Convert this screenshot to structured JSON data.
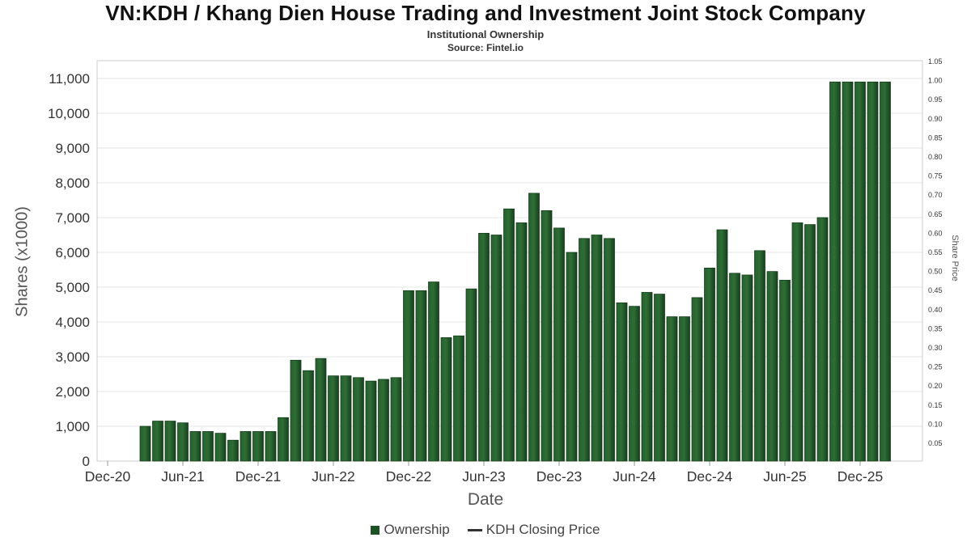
{
  "header": {
    "title": "VN:KDH / Khang Dien House Trading and Investment Joint Stock Company",
    "subtitle": "Institutional Ownership",
    "source": "Source: Fintel.io"
  },
  "chart_data": {
    "type": "bar",
    "title": "VN:KDH / Khang Dien House Trading and Investment Joint Stock Company",
    "subtitle": "Institutional Ownership",
    "source": "Source: Fintel.io",
    "xlabel": "Date",
    "ylabel_left": "Shares (x1000)",
    "ylabel_right": "Share Price",
    "grid": true,
    "legend_position": "bottom",
    "x_ticks": [
      "Dec-20",
      "Jun-21",
      "Dec-21",
      "Jun-22",
      "Dec-22",
      "Jun-23",
      "Dec-23",
      "Jun-24",
      "Dec-24",
      "Jun-25",
      "Dec-25"
    ],
    "y_axis_left": {
      "min": 0,
      "max": 11000,
      "step": 1000
    },
    "y_axis_right": {
      "min": 0.05,
      "max": 1.05,
      "step": 0.05
    },
    "categories": [
      "Mar-21",
      "Apr-21",
      "May-21",
      "Jun-21",
      "Jul-21",
      "Aug-21",
      "Sep-21",
      "Oct-21",
      "Nov-21",
      "Dec-21",
      "Jan-22",
      "Feb-22",
      "Mar-22",
      "Apr-22",
      "May-22",
      "Jun-22",
      "Jul-22",
      "Aug-22",
      "Sep-22",
      "Oct-22",
      "Nov-22",
      "Dec-22",
      "Jan-23",
      "Feb-23",
      "Mar-23",
      "Apr-23",
      "May-23",
      "Jun-23",
      "Jul-23",
      "Aug-23",
      "Sep-23",
      "Oct-23",
      "Nov-23",
      "Dec-23",
      "Jan-24",
      "Feb-24",
      "Mar-24",
      "Apr-24",
      "May-24",
      "Jun-24",
      "Jul-24",
      "Aug-24",
      "Sep-24",
      "Oct-24",
      "Nov-24",
      "Dec-24",
      "Jan-25",
      "Feb-25",
      "Mar-25",
      "Apr-25",
      "May-25",
      "Jun-25",
      "Jul-25",
      "Aug-25",
      "Sep-25",
      "Oct-25",
      "Nov-25",
      "Dec-25",
      "Jan-26",
      "Feb-26"
    ],
    "series": [
      {
        "name": "Ownership",
        "type": "bar",
        "color": "#1d5126",
        "values": [
          1000,
          1150,
          1150,
          1100,
          850,
          850,
          800,
          600,
          850,
          850,
          850,
          1250,
          2900,
          2600,
          2950,
          2450,
          2450,
          2400,
          2300,
          2350,
          2400,
          4900,
          4900,
          5150,
          3550,
          3600,
          4950,
          6550,
          6500,
          7250,
          6850,
          7700,
          7200,
          6700,
          6000,
          6400,
          6500,
          6400,
          4550,
          4450,
          4850,
          4800,
          4150,
          4150,
          4700,
          5550,
          6650,
          5400,
          5350,
          6050,
          5450,
          5200,
          6850,
          6800,
          7000,
          10900,
          10900,
          10900,
          10900,
          10900
        ]
      },
      {
        "name": "KDH Closing Price",
        "type": "line",
        "color": "#333333",
        "values": []
      }
    ]
  }
}
